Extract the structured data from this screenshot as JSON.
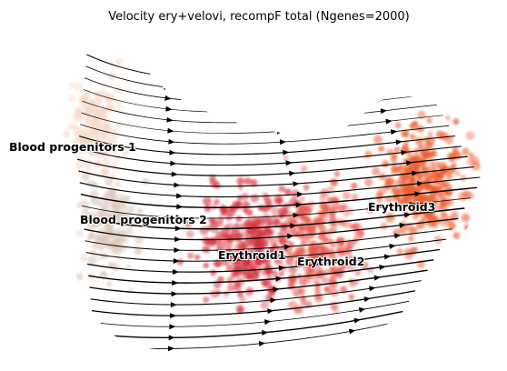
{
  "chart_data": {
    "type": "scatter",
    "title": "Velocity ery+velovi, recompF total (Ngenes=2000)",
    "overlay": "velocity streamlines",
    "axes_visible": false,
    "grid": false,
    "clusters": [
      {
        "name": "Blood progenitors 1",
        "color": "#f6d9c8"
      },
      {
        "name": "Blood progenitors 2",
        "color": "#dcc8bc"
      },
      {
        "name": "Erythroid1",
        "color": "#d6333d"
      },
      {
        "name": "Erythroid2",
        "color": "#e8584a"
      },
      {
        "name": "Erythroid3",
        "color": "#ec5c2c"
      }
    ]
  }
}
